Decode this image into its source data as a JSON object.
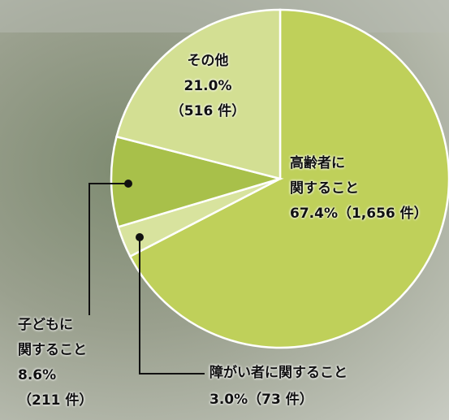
{
  "chart_data": {
    "type": "pie",
    "categories": [
      "高齢者に\n関すること",
      "障がい者に関すること",
      "子どもに\n関すること",
      "その他"
    ],
    "values": [
      67.4,
      3.0,
      8.6,
      21.0
    ],
    "value_labels": [
      "67.4%（1,656 件）",
      "3.0%（73 件）",
      "8.6%\n（211 件）",
      "21.0%\n（516 件）"
    ],
    "colors": [
      "#bfd05a",
      "#d8e39e",
      "#a8c04a",
      "#d3df93"
    ]
  }
}
